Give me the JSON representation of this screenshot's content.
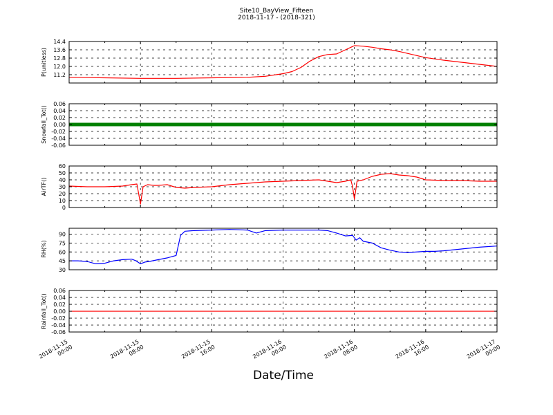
{
  "header": {
    "site": "Site10_BayView_Fifteen",
    "range": "2018-11-17 - (2018-321)"
  },
  "xlabel": "Date/Time",
  "x_ticks": [
    [
      "2018-11-15",
      "00:00"
    ],
    [
      "2018-11-15",
      "08:00"
    ],
    [
      "2018-11-15",
      "16:00"
    ],
    [
      "2018-11-16",
      "00:00"
    ],
    [
      "2018-11-16",
      "08:00"
    ],
    [
      "2018-11-16",
      "16:00"
    ],
    [
      "2018-11-17",
      "00:00"
    ]
  ],
  "chart_data": [
    {
      "type": "line",
      "ylabel": "P(unitless)",
      "ylim": [
        10.4,
        14.4
      ],
      "yticks": [
        "11.2",
        "12.0",
        "12.8",
        "13.6",
        "14.4"
      ],
      "grid": true,
      "color": "#ff0000",
      "x_hours": [
        0,
        4,
        8,
        12,
        16,
        20,
        22,
        24,
        25,
        26,
        27,
        28,
        29,
        30,
        31,
        32,
        33,
        34,
        35,
        36,
        37,
        38,
        40,
        42,
        44,
        46,
        48
      ],
      "values": [
        10.95,
        10.9,
        10.85,
        10.85,
        10.9,
        10.95,
        11.05,
        11.3,
        11.5,
        11.9,
        12.5,
        12.95,
        13.15,
        13.2,
        13.6,
        14.0,
        13.95,
        13.85,
        13.7,
        13.6,
        13.45,
        13.25,
        12.85,
        12.6,
        12.4,
        12.2,
        12.0
      ]
    },
    {
      "type": "line",
      "ylabel": "Snowfall_Tot()",
      "ylim": [
        -0.06,
        0.06
      ],
      "yticks": [
        "-0.06",
        "-0.04",
        "-0.02",
        "0.00",
        "0.02",
        "0.04",
        "0.06"
      ],
      "grid": true,
      "color": "#008000",
      "marker": "dot",
      "x_hours": [
        0,
        48
      ],
      "values": [
        0,
        0
      ]
    },
    {
      "type": "line",
      "ylabel": "AirTF()",
      "ylim": [
        0,
        60
      ],
      "yticks": [
        "0",
        "10",
        "20",
        "30",
        "40",
        "50",
        "60"
      ],
      "grid": true,
      "color": "#ff0000",
      "x_hours": [
        0,
        2,
        4,
        6,
        7,
        7.6,
        7.8,
        8.0,
        8.3,
        8.8,
        9.5,
        10,
        11,
        12,
        13,
        14,
        16,
        18,
        20,
        22,
        24,
        26,
        28,
        29,
        30,
        31,
        31.6,
        31.8,
        32.0,
        32.3,
        33,
        34,
        35,
        36,
        37,
        38,
        39,
        40,
        42,
        44,
        46,
        48
      ],
      "values": [
        31,
        30,
        30,
        31,
        33,
        34,
        20,
        5,
        30,
        33,
        32,
        32,
        33,
        29,
        28,
        29,
        30,
        33,
        35,
        37,
        38,
        39,
        40,
        38,
        36,
        38,
        40,
        30,
        12,
        38,
        40,
        45,
        48,
        49,
        47,
        46,
        44,
        40,
        39,
        39,
        38,
        38
      ]
    },
    {
      "type": "line",
      "ylabel": "RH(%)",
      "ylim": [
        30,
        100
      ],
      "yticks": [
        "30",
        "45",
        "60",
        "75",
        "90"
      ],
      "grid": true,
      "color": "#0000ff",
      "x_hours": [
        0,
        1,
        2,
        3,
        4,
        5,
        6,
        7,
        7.5,
        8,
        8.5,
        9,
        10,
        11,
        11.5,
        12,
        12.5,
        13,
        14,
        16,
        18,
        20,
        21,
        22,
        24,
        26,
        28,
        29,
        30,
        31,
        31.8,
        32.2,
        32.6,
        33,
        34,
        35,
        36,
        37,
        38,
        40,
        41,
        42,
        44,
        46,
        48
      ],
      "values": [
        45,
        45,
        44,
        40,
        41,
        45,
        47,
        48,
        45,
        40,
        43,
        44,
        47,
        50,
        52,
        54,
        88,
        95,
        96,
        97,
        98,
        97,
        92,
        96,
        97,
        97,
        97,
        96,
        92,
        87,
        88,
        80,
        84,
        78,
        75,
        67,
        63,
        60,
        59,
        61,
        61,
        62,
        65,
        68,
        70
      ]
    },
    {
      "type": "line",
      "ylabel": "Rainfall_Tot()",
      "ylim": [
        -0.06,
        0.06
      ],
      "yticks": [
        "-0.06",
        "-0.04",
        "-0.02",
        "0.00",
        "0.02",
        "0.04",
        "0.06"
      ],
      "grid": true,
      "color": "#ff0000",
      "x_hours": [
        0,
        48
      ],
      "values": [
        0,
        0
      ]
    }
  ]
}
